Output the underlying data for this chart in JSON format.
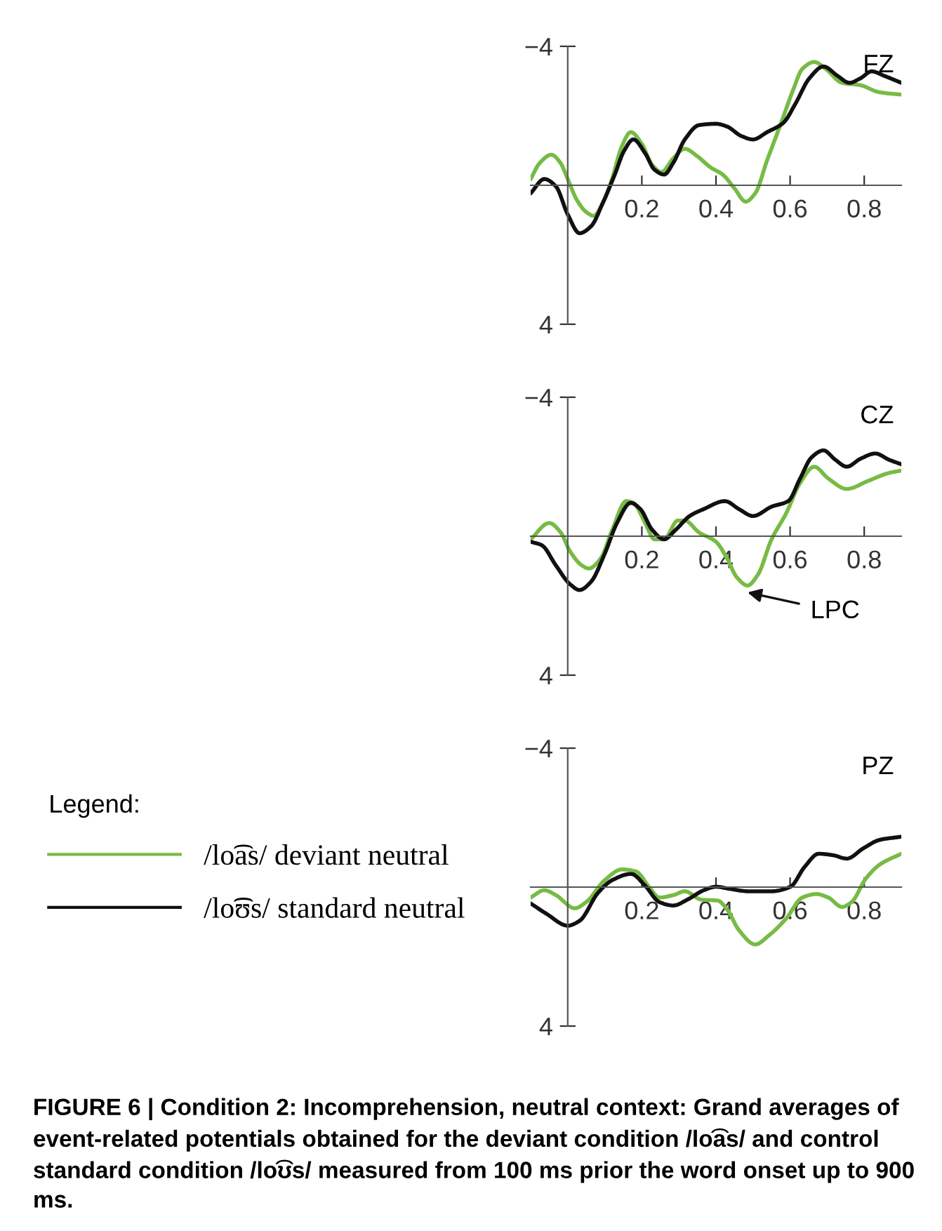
{
  "chart_data": [
    {
      "type": "line",
      "title": "FZ",
      "xlim": [
        -0.1,
        0.9
      ],
      "ylim": [
        4,
        -4
      ],
      "xticks": [
        0.2,
        0.4,
        0.6,
        0.8
      ],
      "yticks": [
        -4,
        4
      ],
      "grid": false,
      "legend": "left",
      "legend_title": "Legend:",
      "series": [
        {
          "name": "/lo͡as/ deviant neutral",
          "color": "#77bb44",
          "x": [
            -0.1,
            -0.075,
            -0.044,
            -0.02,
            0,
            0.025,
            0.05,
            0.07,
            0.095,
            0.12,
            0.146,
            0.17,
            0.2,
            0.228,
            0.253,
            0.285,
            0.316,
            0.348,
            0.386,
            0.418,
            0.45,
            0.48,
            0.506,
            0.538,
            0.576,
            0.608,
            0.633,
            0.665,
            0.696,
            0.74,
            0.79,
            0.84,
            0.9
          ],
          "values": [
            -0.18,
            -0.65,
            -0.88,
            -0.65,
            -0.18,
            0.43,
            0.77,
            0.88,
            0.5,
            -0.2,
            -1.12,
            -1.53,
            -1.19,
            -0.58,
            -0.38,
            -0.78,
            -1.05,
            -0.85,
            -0.51,
            -0.31,
            0.09,
            0.47,
            0.23,
            -0.72,
            -1.8,
            -2.74,
            -3.35,
            -3.55,
            -3.35,
            -2.95,
            -2.88,
            -2.68,
            -2.61
          ]
        },
        {
          "name": "/lo͡ʊs/ standard neutral",
          "color": "#111111",
          "x": [
            -0.1,
            -0.063,
            -0.032,
            0,
            0.032,
            0.063,
            0.095,
            0.127,
            0.152,
            0.177,
            0.209,
            0.234,
            0.26,
            0.285,
            0.316,
            0.354,
            0.4,
            0.43,
            0.468,
            0.5,
            0.538,
            0.582,
            0.614,
            0.652,
            0.69,
            0.728,
            0.76,
            0.79,
            0.82,
            0.854,
            0.9
          ],
          "values": [
            0.23,
            -0.18,
            0.03,
            0.84,
            1.38,
            1.18,
            0.5,
            -0.31,
            -0.99,
            -1.32,
            -0.92,
            -0.45,
            -0.31,
            -0.65,
            -1.32,
            -1.73,
            -1.77,
            -1.69,
            -1.42,
            -1.32,
            -1.53,
            -1.8,
            -2.34,
            -3.08,
            -3.42,
            -3.15,
            -2.95,
            -3.08,
            -3.28,
            -3.15,
            -2.95
          ]
        }
      ]
    },
    {
      "type": "line",
      "title": "CZ",
      "xlim": [
        -0.1,
        0.9
      ],
      "ylim": [
        4,
        -4
      ],
      "xticks": [
        0.2,
        0.4,
        0.6,
        0.8
      ],
      "yticks": [
        -4,
        4
      ],
      "grid": false,
      "annotations": [
        {
          "text": "LPC",
          "x": 0.485,
          "y": 1.42
        }
      ],
      "series": [
        {
          "color": "#77bb44",
          "x": [
            -0.1,
            -0.05,
            -0.019,
            0.006,
            0.038,
            0.057,
            0.089,
            0.12,
            0.158,
            0.177,
            0.209,
            0.234,
            0.26,
            0.297,
            0.316,
            0.354,
            0.4,
            0.43,
            0.456,
            0.485,
            0.513,
            0.55,
            0.589,
            0.627,
            0.665,
            0.703,
            0.753,
            0.81,
            0.867,
            0.9
          ],
          "values": [
            0.09,
            -0.38,
            -0.11,
            0.43,
            0.84,
            0.93,
            0.64,
            -0.18,
            -1.01,
            -0.96,
            -0.38,
            0.09,
            0.09,
            -0.45,
            -0.45,
            -0.11,
            0.16,
            0.64,
            1.18,
            1.42,
            1.11,
            0.09,
            -0.65,
            -1.53,
            -2.0,
            -1.66,
            -1.36,
            -1.59,
            -1.82,
            -1.89
          ]
        },
        {
          "color": "#111111",
          "x": [
            -0.1,
            -0.07,
            -0.032,
            0.006,
            0.032,
            0.063,
            0.1,
            0.133,
            0.17,
            0.196,
            0.228,
            0.26,
            0.291,
            0.329,
            0.367,
            0.424,
            0.462,
            0.5,
            0.55,
            0.595,
            0.627,
            0.658,
            0.69,
            0.722,
            0.753,
            0.79,
            0.83,
            0.867,
            0.9
          ],
          "values": [
            0.16,
            0.26,
            0.84,
            1.38,
            1.55,
            1.31,
            0.5,
            -0.38,
            -0.96,
            -0.78,
            -0.18,
            0.09,
            -0.18,
            -0.58,
            -0.78,
            -1.01,
            -0.78,
            -0.58,
            -0.85,
            -1.01,
            -1.66,
            -2.27,
            -2.47,
            -2.2,
            -2.0,
            -2.23,
            -2.38,
            -2.2,
            -2.07
          ]
        }
      ]
    },
    {
      "type": "line",
      "title": "PZ",
      "xlim": [
        -0.1,
        0.9
      ],
      "ylim": [
        4,
        -4
      ],
      "xticks": [
        0.2,
        0.4,
        0.6,
        0.8
      ],
      "yticks": [
        -4,
        4
      ],
      "grid": false,
      "annotations": [
        "FIGURE 6 | Condition 2: Incomprehension, neutral context: Grand averages of event-related potentials obtained for the deviant condition /lo͡as/ and control standard condition /lo͡ʊs/ measured from 100 ms prior the word onset up to 900 ms."
      ],
      "series": [
        {
          "color": "#77bb44",
          "x": [
            -0.1,
            -0.063,
            -0.032,
            0.019,
            0.05,
            0.1,
            0.146,
            0.184,
            0.222,
            0.247,
            0.285,
            0.316,
            0.36,
            0.405,
            0.43,
            0.462,
            0.506,
            0.544,
            0.589,
            0.633,
            0.671,
            0.703,
            0.74,
            0.766,
            0.804,
            0.842,
            0.9
          ],
          "values": [
            0.3,
            0.09,
            0.23,
            0.61,
            0.43,
            -0.2,
            -0.51,
            -0.45,
            0.03,
            0.3,
            0.23,
            0.12,
            0.36,
            0.39,
            0.64,
            1.24,
            1.65,
            1.38,
            0.91,
            0.3,
            0.2,
            0.3,
            0.57,
            0.43,
            -0.24,
            -0.65,
            -0.96
          ]
        },
        {
          "color": "#111111",
          "x": [
            -0.1,
            -0.057,
            0,
            0.032,
            0.082,
            0.12,
            0.171,
            0.209,
            0.247,
            0.285,
            0.323,
            0.367,
            0.4,
            0.437,
            0.487,
            0.55,
            0.601,
            0.639,
            0.677,
            0.715,
            0.753,
            0.798,
            0.842,
            0.9
          ],
          "values": [
            0.47,
            0.77,
            1.11,
            0.97,
            0.16,
            -0.2,
            -0.38,
            -0.04,
            0.43,
            0.53,
            0.36,
            0.09,
            -0.01,
            0.05,
            0.12,
            0.12,
            -0.01,
            -0.58,
            -0.96,
            -0.92,
            -0.82,
            -1.12,
            -1.36,
            -1.45
          ]
        }
      ]
    }
  ]
}
